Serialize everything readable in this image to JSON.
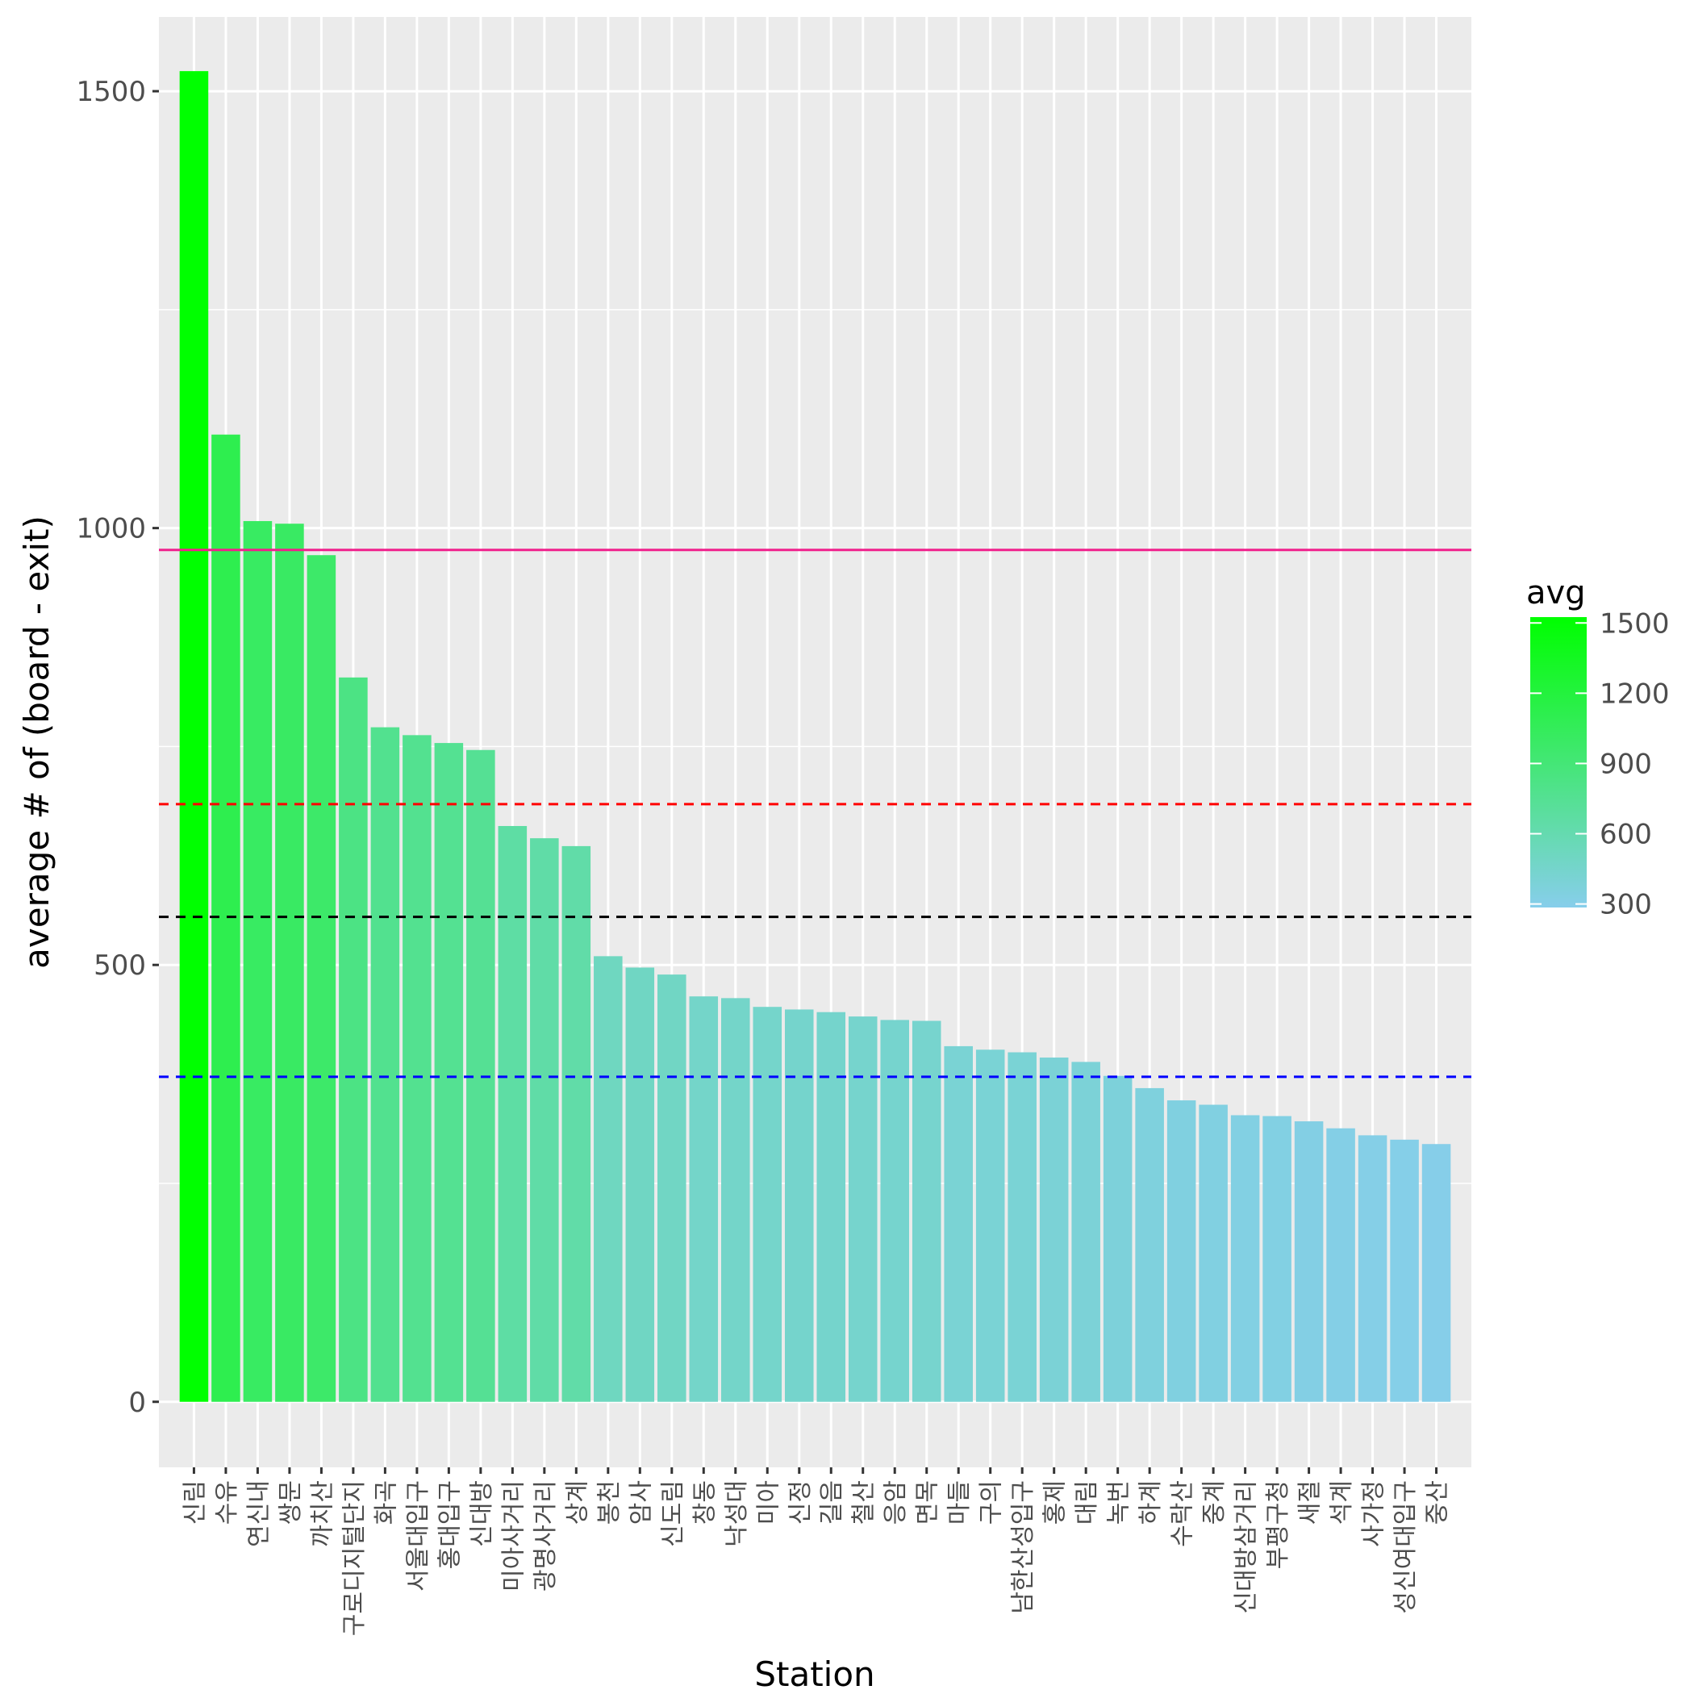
{
  "chart_data": {
    "type": "bar",
    "xlabel": "Station",
    "ylabel": "average # of (board - exit)",
    "ylim": [
      -75,
      1585
    ],
    "yticks": [
      0,
      500,
      1000,
      1500
    ],
    "grid": true,
    "legend": {
      "title": "avg",
      "placement": "right",
      "ticks": [
        1500,
        1200,
        900,
        600,
        300
      ],
      "low_color": "#87CEEB",
      "high_color": "#00FF00",
      "range": [
        285,
        1525
      ]
    },
    "reference_lines": [
      {
        "value": 975,
        "color": "#F0208C",
        "style": "solid"
      },
      {
        "value": 684,
        "color": "#FF0000",
        "style": "dashed"
      },
      {
        "value": 555,
        "color": "#000000",
        "style": "dashed"
      },
      {
        "value": 372,
        "color": "#0000FF",
        "style": "dashed"
      }
    ],
    "categories": [
      "신림",
      "수유",
      "연신내",
      "쌍문",
      "까치산",
      "구로디지털단지",
      "화곡",
      "서울대입구",
      "홍대입구",
      "신대방",
      "미아사거리",
      "광명사거리",
      "상계",
      "봉천",
      "암사",
      "신도림",
      "창동",
      "낙성대",
      "미아",
      "신정",
      "길음",
      "철산",
      "응암",
      "면목",
      "마들",
      "구의",
      "남한산성입구",
      "홍제",
      "대림",
      "녹번",
      "하계",
      "수락산",
      "중계",
      "신대방삼거리",
      "부평구청",
      "새절",
      "석계",
      "사가정",
      "성신여대입구",
      "중산"
    ],
    "values": [
      1523,
      1107,
      1008,
      1005,
      969,
      829,
      772,
      763,
      754,
      746,
      659,
      645,
      636,
      510,
      497,
      489,
      464,
      462,
      452,
      449,
      446,
      441,
      437,
      436,
      407,
      403,
      400,
      394,
      389,
      373,
      359,
      345,
      340,
      328,
      327,
      321,
      313,
      305,
      300,
      295
    ]
  }
}
